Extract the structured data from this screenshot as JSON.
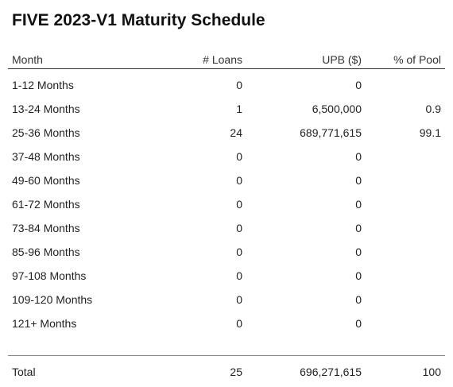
{
  "title": "FIVE 2023-V1 Maturity Schedule",
  "columns": {
    "month": "Month",
    "loans": "# Loans",
    "upb": "UPB ($)",
    "pct": "% of Pool"
  },
  "rows": [
    {
      "month": "1-12 Months",
      "loans": "0",
      "upb": "0",
      "pct": ""
    },
    {
      "month": "13-24 Months",
      "loans": "1",
      "upb": "6,500,000",
      "pct": "0.9"
    },
    {
      "month": "25-36 Months",
      "loans": "24",
      "upb": "689,771,615",
      "pct": "99.1"
    },
    {
      "month": "37-48 Months",
      "loans": "0",
      "upb": "0",
      "pct": ""
    },
    {
      "month": "49-60 Months",
      "loans": "0",
      "upb": "0",
      "pct": ""
    },
    {
      "month": "61-72 Months",
      "loans": "0",
      "upb": "0",
      "pct": ""
    },
    {
      "month": "73-84 Months",
      "loans": "0",
      "upb": "0",
      "pct": ""
    },
    {
      "month": "85-96 Months",
      "loans": "0",
      "upb": "0",
      "pct": ""
    },
    {
      "month": "97-108 Months",
      "loans": "0",
      "upb": "0",
      "pct": ""
    },
    {
      "month": "109-120 Months",
      "loans": "0",
      "upb": "0",
      "pct": ""
    },
    {
      "month": "121+ Months",
      "loans": "0",
      "upb": "0",
      "pct": ""
    }
  ],
  "total": {
    "month": "Total",
    "loans": "25",
    "upb": "696,271,615",
    "pct": "100"
  }
}
